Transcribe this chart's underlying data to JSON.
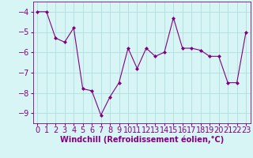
{
  "x": [
    0,
    1,
    2,
    3,
    4,
    5,
    6,
    7,
    8,
    9,
    10,
    11,
    12,
    13,
    14,
    15,
    16,
    17,
    18,
    19,
    20,
    21,
    22,
    23
  ],
  "y": [
    -4.0,
    -4.0,
    -5.3,
    -5.5,
    -4.8,
    -7.8,
    -7.9,
    -9.1,
    -8.2,
    -7.5,
    -5.8,
    -6.8,
    -5.8,
    -6.2,
    -6.0,
    -4.3,
    -5.8,
    -5.8,
    -5.9,
    -6.2,
    -6.2,
    -7.5,
    -7.5,
    -5.0
  ],
  "line_color": "#800080",
  "marker": "D",
  "marker_size": 2,
  "bg_color": "#d8f5f5",
  "grid_color": "#b0dede",
  "xlabel": "Windchill (Refroidissement éolien,°C)",
  "ylim": [
    -9.5,
    -3.5
  ],
  "yticks": [
    -9,
    -8,
    -7,
    -6,
    -5,
    -4
  ],
  "xlim": [
    -0.5,
    23.5
  ],
  "xtick_labels": [
    "0",
    "1",
    "2",
    "3",
    "4",
    "5",
    "6",
    "7",
    "8",
    "9",
    "10",
    "11",
    "12",
    "13",
    "14",
    "15",
    "16",
    "17",
    "18",
    "19",
    "20",
    "21",
    "22",
    "23"
  ],
  "xlabel_fontsize": 7,
  "tick_fontsize": 7,
  "label_color": "#800080"
}
